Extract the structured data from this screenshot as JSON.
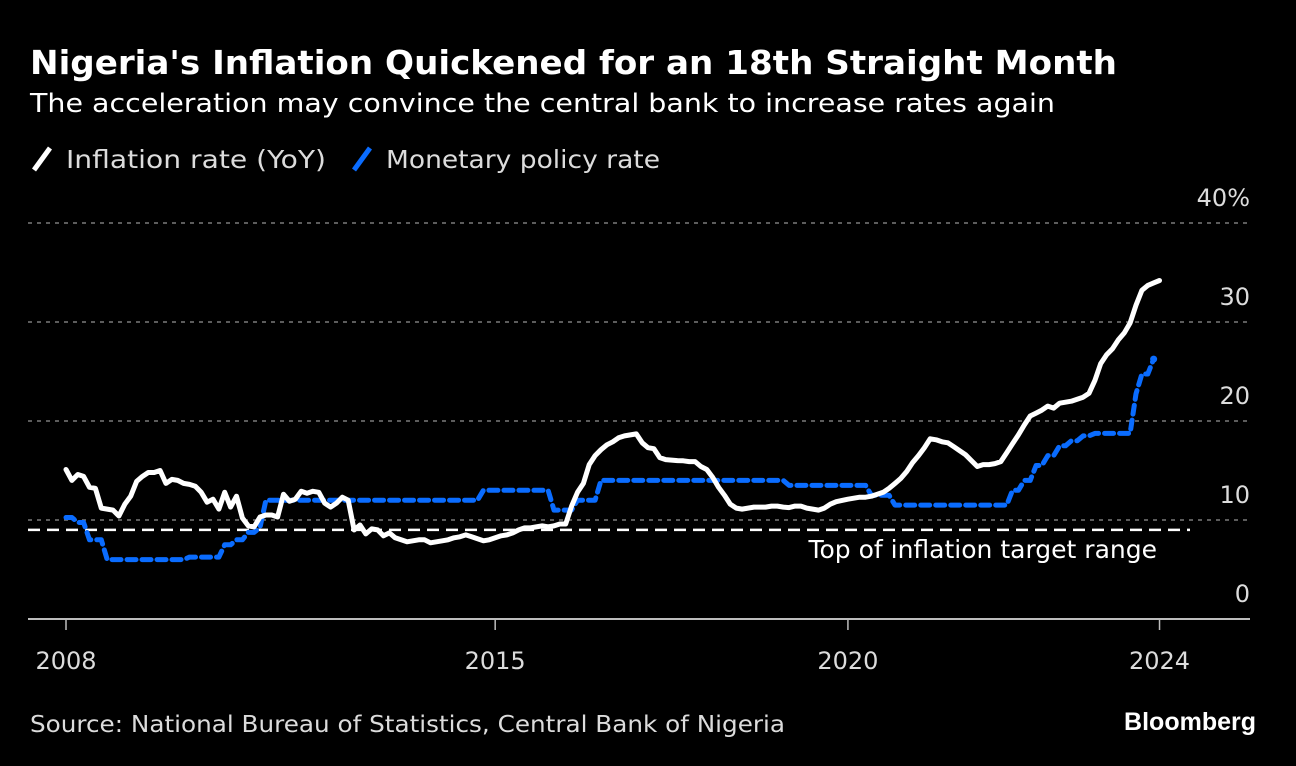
{
  "chart_data": {
    "type": "line",
    "title": "Nigeria's Inflation Quickened for an 18th Straight Month",
    "subtitle": "The acceleration may convince the central bank to increase rates again",
    "xlabel": "",
    "ylabel": "",
    "ylim": [
      0,
      40
    ],
    "y_unit_suffix": "%",
    "y_ticks": [
      {
        "value": 40,
        "label": "40%"
      },
      {
        "value": 30,
        "label": "30"
      },
      {
        "value": 20,
        "label": "20"
      },
      {
        "value": 10,
        "label": "10"
      },
      {
        "value": 0,
        "label": "0"
      }
    ],
    "x_ticks": [
      {
        "at": "2008-12",
        "label": "2008"
      },
      {
        "at": "2015-01",
        "label": "2015"
      },
      {
        "at": "2020-01",
        "label": "2020"
      },
      {
        "at": "2024-06",
        "label": "2024"
      }
    ],
    "grid": true,
    "legend_placement": "top-left",
    "legend": [
      {
        "name": "Inflation rate (YoY)",
        "color": "#ffffff"
      },
      {
        "name": "Monetary policy rate",
        "color": "#0a6cff"
      }
    ],
    "series": [
      {
        "name": "Inflation rate (YoY)",
        "color": "#ffffff",
        "start": "2008-12",
        "frequency": "monthly",
        "values": [
          15.1,
          14.0,
          14.6,
          14.4,
          13.3,
          13.2,
          11.2,
          11.1,
          11.0,
          10.4,
          11.6,
          12.4,
          13.9,
          14.4,
          14.8,
          14.8,
          15.0,
          13.7,
          14.1,
          14.0,
          13.7,
          13.6,
          13.4,
          12.8,
          11.8,
          12.1,
          11.1,
          12.8,
          11.3,
          12.4,
          10.2,
          9.4,
          9.3,
          10.3,
          10.5,
          10.5,
          10.3,
          12.6,
          11.9,
          12.1,
          12.9,
          12.7,
          12.9,
          12.8,
          11.7,
          11.3,
          11.7,
          12.3,
          12.0,
          9.0,
          9.5,
          8.6,
          9.1,
          9.0,
          8.4,
          8.7,
          8.2,
          8.0,
          7.8,
          7.9,
          8.0,
          8.0,
          7.7,
          7.8,
          7.9,
          8.0,
          8.2,
          8.3,
          8.5,
          8.3,
          8.1,
          7.9,
          8.0,
          8.2,
          8.4,
          8.5,
          8.7,
          9.0,
          9.2,
          9.2,
          9.3,
          9.4,
          9.3,
          9.4,
          9.6,
          9.6,
          11.4,
          12.8,
          13.7,
          15.6,
          16.5,
          17.1,
          17.6,
          17.9,
          18.3,
          18.5,
          18.6,
          18.7,
          17.8,
          17.3,
          17.2,
          16.3,
          16.1,
          16.05,
          16.0,
          15.98,
          15.9,
          15.9,
          15.4,
          15.1,
          14.3,
          13.3,
          12.5,
          11.6,
          11.2,
          11.1,
          11.2,
          11.3,
          11.3,
          11.3,
          11.4,
          11.4,
          11.3,
          11.25,
          11.4,
          11.4,
          11.2,
          11.1,
          11.0,
          11.2,
          11.6,
          11.85,
          11.98,
          12.1,
          12.2,
          12.3,
          12.3,
          12.4,
          12.6,
          12.8,
          13.2,
          13.7,
          14.2,
          14.9,
          15.8,
          16.5,
          17.3,
          18.2,
          18.1,
          17.9,
          17.8,
          17.4,
          17.0,
          16.6,
          16.0,
          15.4,
          15.6,
          15.6,
          15.7,
          15.9,
          16.8,
          17.7,
          18.6,
          19.6,
          20.5,
          20.8,
          21.1,
          21.5,
          21.3,
          21.8,
          21.9,
          22.0,
          22.2,
          22.4,
          22.8,
          24.1,
          25.8,
          26.7,
          27.3,
          28.2,
          28.9,
          29.9,
          31.7,
          33.2,
          33.7,
          33.95,
          34.19
        ]
      },
      {
        "name": "Monetary policy rate",
        "color": "#0a6cff",
        "frequency": "monthly",
        "end": "2024-05",
        "steps": [
          {
            "from": "2008-12",
            "value": 10.25
          },
          {
            "from": "2009-02",
            "value": 9.75
          },
          {
            "from": "2009-04",
            "value": 8.0
          },
          {
            "from": "2009-07",
            "value": 6.0
          },
          {
            "from": "2010-09",
            "value": 6.25
          },
          {
            "from": "2011-03",
            "value": 7.5
          },
          {
            "from": "2011-05",
            "value": 8.0
          },
          {
            "from": "2011-07",
            "value": 8.75
          },
          {
            "from": "2011-09",
            "value": 9.25
          },
          {
            "from": "2011-10",
            "value": 12.0
          },
          {
            "from": "2014-11",
            "value": 13.0
          },
          {
            "from": "2015-11",
            "value": 11.0
          },
          {
            "from": "2016-03",
            "value": 12.0
          },
          {
            "from": "2016-07",
            "value": 14.0
          },
          {
            "from": "2019-03",
            "value": 13.5
          },
          {
            "from": "2020-05",
            "value": 12.5
          },
          {
            "from": "2020-09",
            "value": 11.5
          },
          {
            "from": "2022-05",
            "value": 13.0
          },
          {
            "from": "2022-07",
            "value": 14.0
          },
          {
            "from": "2022-09",
            "value": 15.5
          },
          {
            "from": "2022-11",
            "value": 16.5
          },
          {
            "from": "2023-01",
            "value": 17.5
          },
          {
            "from": "2023-03",
            "value": 18.0
          },
          {
            "from": "2023-05",
            "value": 18.5
          },
          {
            "from": "2023-07",
            "value": 18.75
          },
          {
            "from": "2024-02",
            "value": 22.75
          },
          {
            "from": "2024-03",
            "value": 24.75
          },
          {
            "from": "2024-05",
            "value": 26.25
          }
        ]
      }
    ],
    "reference_lines": [
      {
        "value": 9,
        "label": "Top of inflation target range",
        "color": "#ffffff",
        "style": "dashed"
      }
    ]
  },
  "footer": {
    "source": "Source: National Bureau of Statistics, Central Bank of Nigeria",
    "brand": "Bloomberg"
  }
}
